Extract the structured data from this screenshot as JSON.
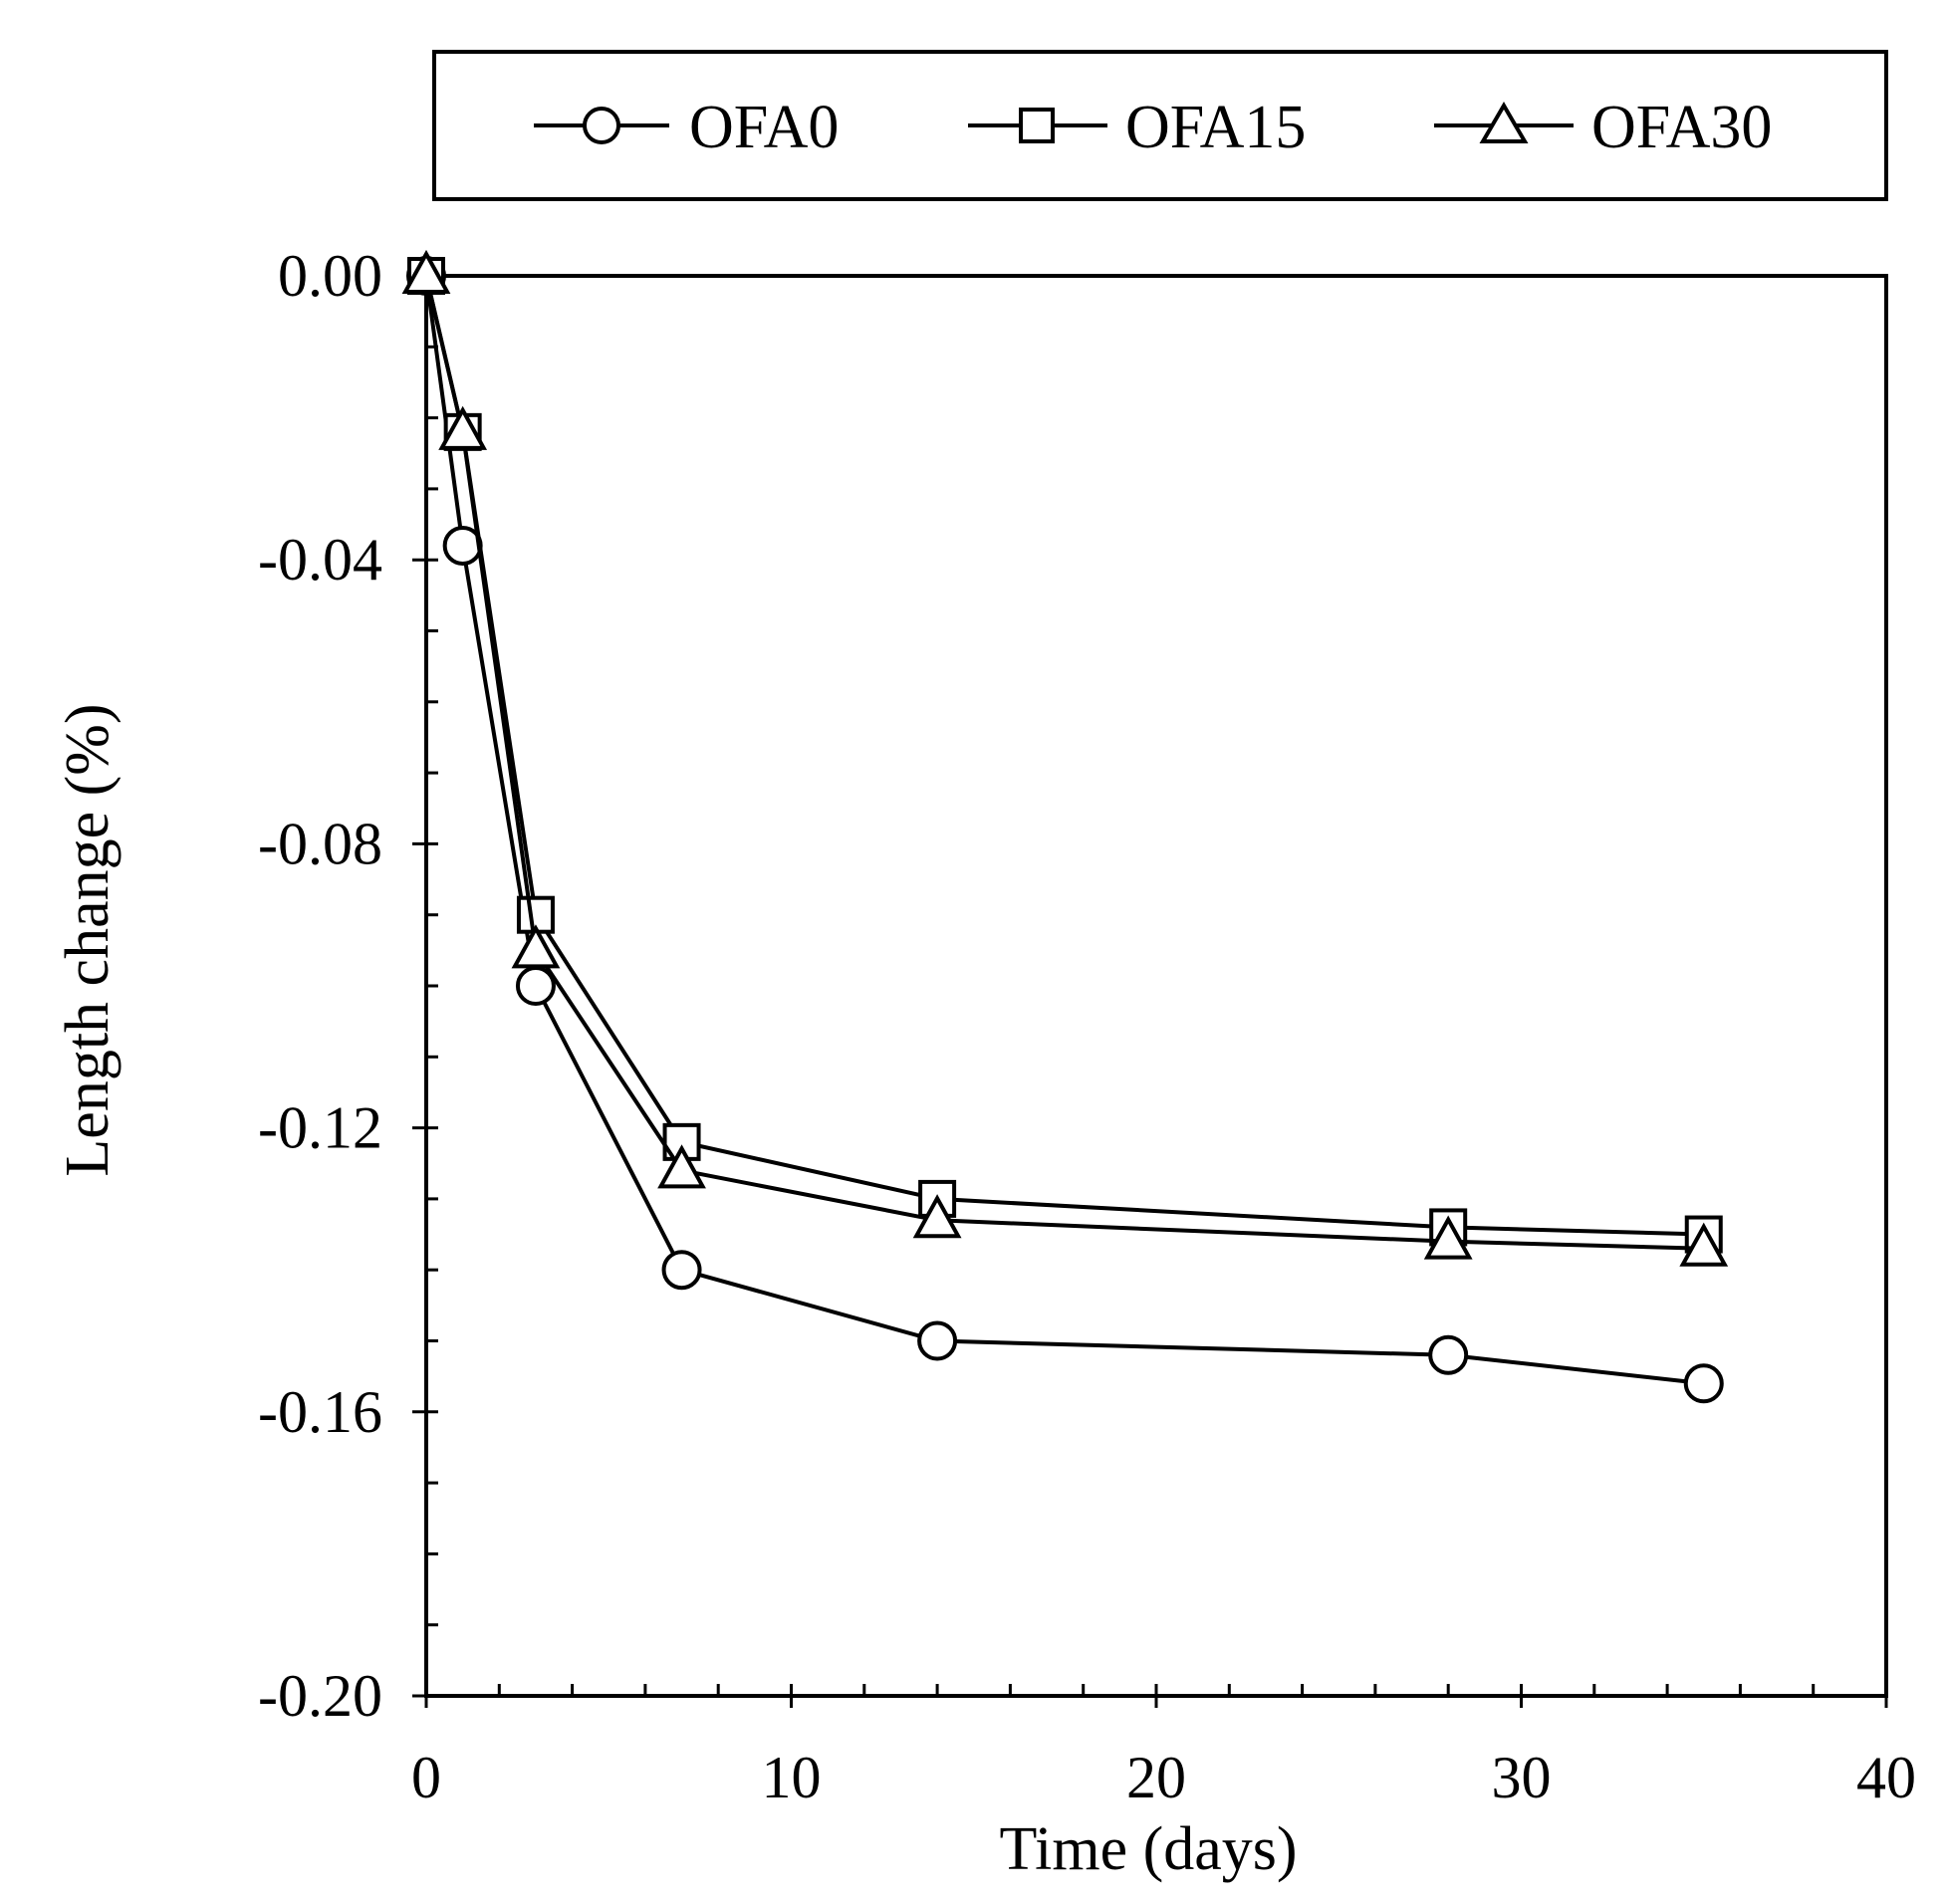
{
  "chart_data": {
    "type": "line",
    "title": "",
    "xlabel": "Time (days)",
    "ylabel": "Length change (%)",
    "xlim": [
      0,
      40
    ],
    "ylim": [
      -0.2,
      0.0
    ],
    "x_ticks": [
      0,
      10,
      20,
      30,
      40
    ],
    "x_tick_labels": [
      "0",
      "10",
      "20",
      "30",
      "40"
    ],
    "y_ticks": [
      0.0,
      -0.04,
      -0.08,
      -0.12,
      -0.16,
      -0.2
    ],
    "y_tick_labels": [
      "0.00",
      "-0.04",
      "-0.08",
      "-0.12",
      "-0.16",
      "-0.20"
    ],
    "grid": false,
    "legend_position": "top",
    "series": [
      {
        "name": "OFA0",
        "marker": "circle",
        "x": [
          0,
          1,
          3,
          7,
          14,
          28,
          35
        ],
        "values": [
          0.0,
          -0.038,
          -0.1,
          -0.14,
          -0.15,
          -0.152,
          -0.156
        ]
      },
      {
        "name": "OFA15",
        "marker": "square",
        "x": [
          0,
          1,
          3,
          7,
          14,
          28,
          35
        ],
        "values": [
          0.0,
          -0.022,
          -0.09,
          -0.122,
          -0.13,
          -0.134,
          -0.135
        ]
      },
      {
        "name": "OFA30",
        "marker": "triangle",
        "x": [
          0,
          1,
          3,
          7,
          14,
          28,
          35
        ],
        "values": [
          0.0,
          -0.022,
          -0.095,
          -0.126,
          -0.133,
          -0.136,
          -0.137
        ]
      }
    ]
  }
}
